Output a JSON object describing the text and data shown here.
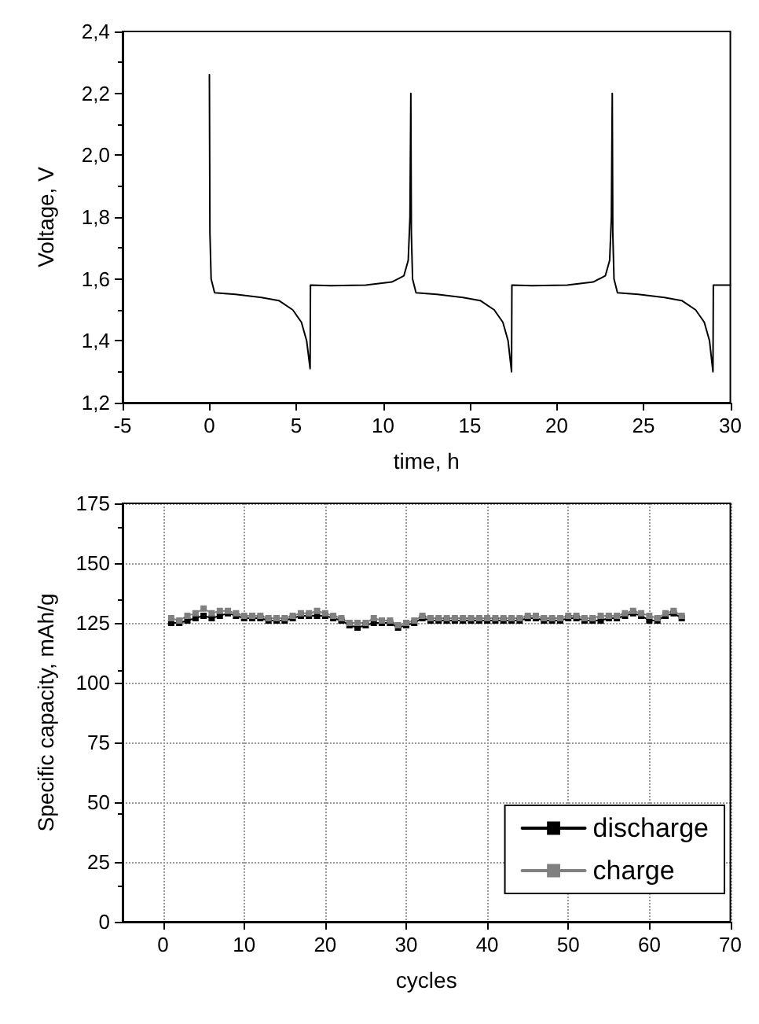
{
  "chart_data": [
    {
      "type": "line",
      "xlabel": "time, h",
      "ylabel": "Voltage, V",
      "xlim": [
        -5,
        30
      ],
      "xticks": [
        -5,
        0,
        5,
        10,
        15,
        20,
        25,
        30
      ],
      "ylim": [
        1.2,
        2.4
      ],
      "yticks": [
        {
          "value": 1.2,
          "label": "1,2"
        },
        {
          "value": 1.4,
          "label": "1,4"
        },
        {
          "value": 1.6,
          "label": "1,6"
        },
        {
          "value": 1.8,
          "label": "1,8"
        },
        {
          "value": 2.0,
          "label": "2,0"
        },
        {
          "value": 2.2,
          "label": "2,2"
        },
        {
          "value": 2.4,
          "label": "2,4"
        }
      ],
      "grid": false,
      "legend": false,
      "marker": "none",
      "line_style": "solid",
      "series": [
        {
          "color": "#000000",
          "x": [
            0,
            0.03,
            0.1,
            0.3,
            1.5,
            3,
            4,
            4.8,
            5.3,
            5.6,
            5.8,
            5.82,
            7,
            9,
            10.5,
            11.2,
            11.45,
            11.55,
            11.6,
            11.63,
            11.7,
            11.9,
            13.1,
            14.6,
            15.6,
            16.4,
            16.9,
            17.2,
            17.4,
            17.42,
            18.6,
            20.6,
            22.1,
            22.8,
            23.05,
            23.15,
            23.2,
            23.23,
            23.3,
            23.5,
            24.7,
            26.2,
            27.2,
            28,
            28.5,
            28.8,
            29,
            29.02,
            30
          ],
          "values": [
            2.26,
            1.75,
            1.6,
            1.555,
            1.55,
            1.54,
            1.53,
            1.5,
            1.46,
            1.4,
            1.31,
            1.58,
            1.578,
            1.58,
            1.59,
            1.61,
            1.66,
            1.8,
            2.2,
            1.75,
            1.6,
            1.555,
            1.55,
            1.54,
            1.53,
            1.5,
            1.46,
            1.4,
            1.3,
            1.58,
            1.578,
            1.58,
            1.59,
            1.61,
            1.66,
            1.8,
            2.2,
            1.75,
            1.6,
            1.555,
            1.55,
            1.54,
            1.53,
            1.5,
            1.46,
            1.4,
            1.3,
            1.58,
            1.58
          ]
        }
      ]
    },
    {
      "type": "line",
      "xlabel": "cycles",
      "ylabel": "Specific capacity, mAh/g",
      "xlim": [
        -5,
        70
      ],
      "xticks": [
        0,
        10,
        20,
        30,
        40,
        50,
        60,
        70
      ],
      "ylim": [
        0,
        175
      ],
      "yticks": [
        0,
        25,
        50,
        75,
        100,
        125,
        150,
        175
      ],
      "grid": true,
      "legend": "bottom right",
      "marker": "square",
      "line_style": "solid",
      "x": [
        1,
        2,
        3,
        4,
        5,
        6,
        7,
        8,
        9,
        10,
        11,
        12,
        13,
        14,
        15,
        16,
        17,
        18,
        19,
        20,
        21,
        22,
        23,
        24,
        25,
        26,
        27,
        28,
        29,
        30,
        31,
        32,
        33,
        34,
        35,
        36,
        37,
        38,
        39,
        40,
        41,
        42,
        43,
        44,
        45,
        46,
        47,
        48,
        49,
        50,
        51,
        52,
        53,
        54,
        55,
        56,
        57,
        58,
        59,
        60,
        61,
        62,
        63,
        64
      ],
      "series": [
        {
          "name": "discharge",
          "color": "#000000",
          "values": [
            125,
            125,
            126,
            127,
            128,
            127,
            128,
            129,
            128,
            127,
            127,
            127,
            126,
            126,
            126,
            127,
            128,
            128,
            128,
            128,
            127,
            126,
            124,
            123,
            124,
            125,
            125,
            125,
            123,
            124,
            125,
            127,
            126,
            126,
            126,
            126,
            126,
            126,
            126,
            126,
            126,
            126,
            126,
            126,
            127,
            127,
            126,
            126,
            126,
            127,
            127,
            126,
            126,
            126,
            127,
            127,
            128,
            129,
            128,
            126,
            126,
            128,
            129,
            127
          ]
        },
        {
          "name": "charge",
          "color": "#808080",
          "values": [
            127,
            126,
            128,
            129,
            131,
            129,
            130,
            130,
            129,
            128,
            128,
            128,
            127,
            127,
            127,
            128,
            129,
            129,
            130,
            129,
            128,
            127,
            125,
            125,
            125,
            127,
            126,
            126,
            124,
            125,
            126,
            128,
            127,
            127,
            127,
            127,
            127,
            127,
            127,
            127,
            127,
            127,
            127,
            127,
            128,
            128,
            127,
            127,
            127,
            128,
            128,
            127,
            127,
            128,
            128,
            128,
            129,
            130,
            129,
            128,
            127,
            129,
            130,
            128
          ]
        }
      ]
    }
  ]
}
